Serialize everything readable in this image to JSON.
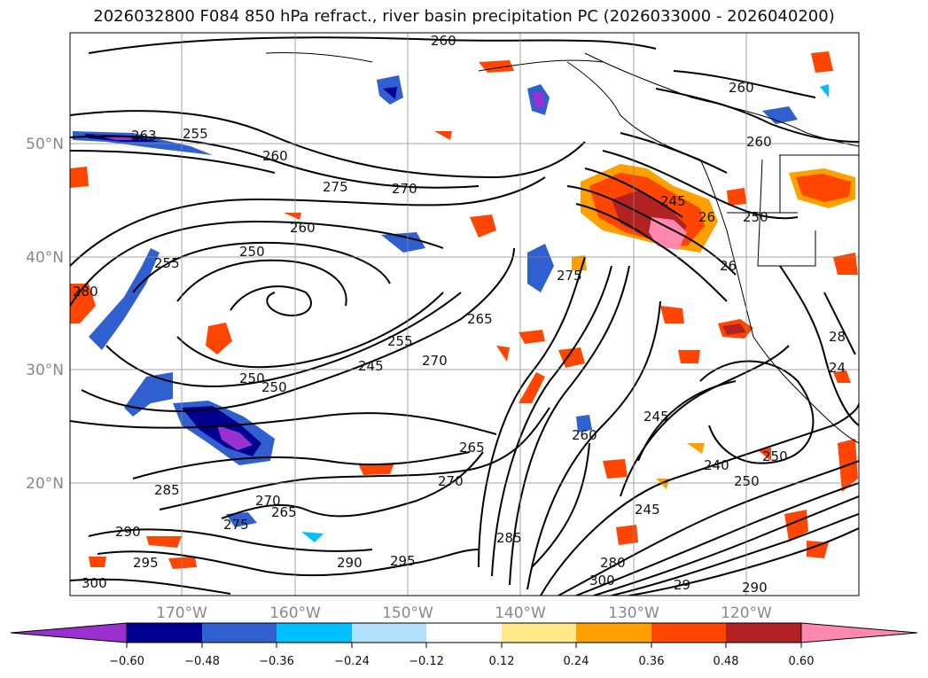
{
  "title": "2026032800 F084 850 hPa refract., river basin precipitation PC (2026033000 - 2026040200)",
  "lat_labels": [
    "50°N",
    "40°N",
    "30°N",
    "20°N"
  ],
  "lon_labels": [
    "170°W",
    "160°W",
    "150°W",
    "140°W",
    "130°W",
    "120°W"
  ],
  "contour_labels": [
    "260",
    "263",
    "255",
    "260",
    "275",
    "270",
    "260",
    "250",
    "255",
    "280",
    "265",
    "255",
    "245",
    "270",
    "250",
    "250",
    "265",
    "270",
    "285",
    "270",
    "265",
    "275",
    "290",
    "295",
    "300",
    "290",
    "295",
    "285",
    "300",
    "280",
    "29",
    "290",
    "245",
    "240",
    "250",
    "250",
    "245",
    "275",
    "260",
    "250",
    "26",
    "260",
    "245",
    "260",
    "26",
    "28",
    "24"
  ],
  "colorbar": {
    "tick_labels": [
      "−0.60",
      "−0.48",
      "−0.36",
      "−0.24",
      "−0.12",
      "0.12",
      "0.24",
      "0.36",
      "0.48",
      "0.60"
    ],
    "colors": [
      "#9b30d0",
      "#000090",
      "#3060d0",
      "#00bfff",
      "#b0e0fa",
      "#ffffff",
      "#ffe88a",
      "#ffa000",
      "#ff4500",
      "#b22222",
      "#ff88b0"
    ]
  }
}
